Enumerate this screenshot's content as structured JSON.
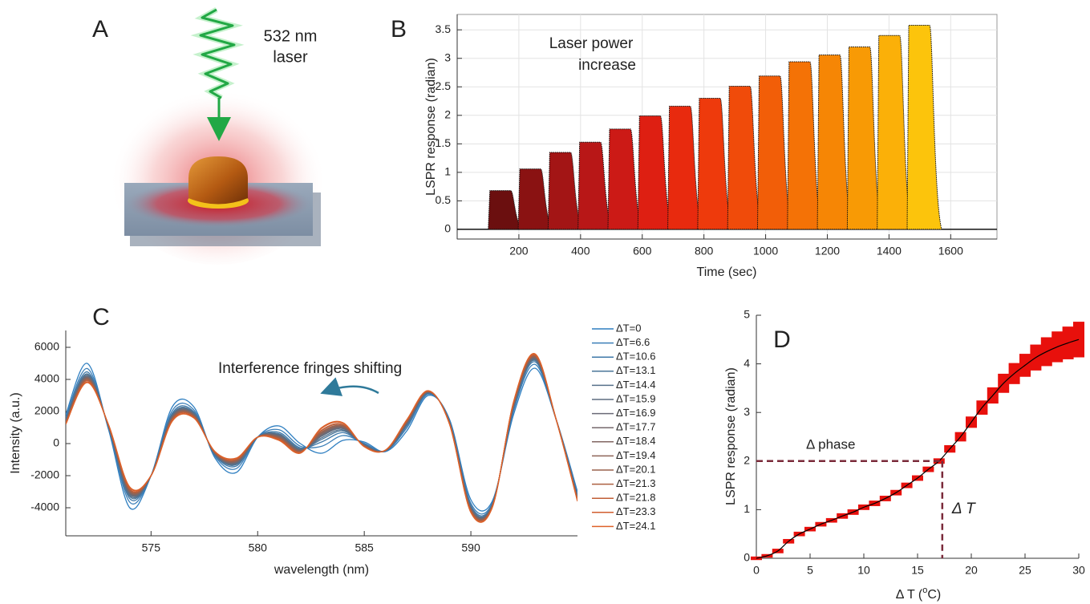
{
  "panel_a": {
    "panel": "A",
    "laser_label": [
      "532 nm",
      "laser"
    ]
  },
  "chart_data": [
    {
      "type": "bar",
      "panel": "B",
      "xlabel": "Time (sec)",
      "ylabel": "LSPR response (radian)",
      "annotation": [
        "Laser power",
        "increase"
      ],
      "x": [
        145,
        242,
        339,
        436,
        533,
        630,
        727,
        824,
        921,
        1018,
        1115,
        1212,
        1309,
        1406,
        1503
      ],
      "values": [
        0.68,
        1.06,
        1.35,
        1.53,
        1.76,
        1.99,
        2.16,
        2.3,
        2.51,
        2.69,
        2.94,
        3.06,
        3.2,
        3.4,
        3.58
      ],
      "colors": [
        "#6b0f0f",
        "#8a1212",
        "#a31515",
        "#b81717",
        "#cc1a16",
        "#de1f12",
        "#e82a0e",
        "#ee3a0c",
        "#f04b0a",
        "#f25e08",
        "#f47206",
        "#f68605",
        "#f89a05",
        "#fbb008",
        "#fcc40c"
      ],
      "xlim": [
        0,
        1750
      ],
      "xticks": [
        200,
        400,
        600,
        800,
        1000,
        1200,
        1400,
        1600
      ],
      "ylim": [
        -0.17,
        3.77
      ],
      "yticks": [
        0,
        0.5,
        1,
        1.5,
        2,
        2.5,
        3,
        3.5
      ],
      "grid": true
    },
    {
      "type": "line",
      "panel": "C",
      "xlabel": "wavelength (nm)",
      "ylabel": "Intensity  (a.u.)",
      "annotation": "Interference fringes shifting",
      "x": [
        571,
        572,
        573,
        574,
        575,
        576,
        577,
        578,
        579,
        580,
        581,
        582,
        583,
        584,
        585,
        586,
        587,
        588,
        589,
        590,
        591,
        592,
        593,
        594,
        595
      ],
      "series": [
        {
          "name": "ΔT=0",
          "color": "#2f7fc1",
          "values": [
            1800,
            5000,
            900,
            -4000,
            -2000,
            2300,
            2300,
            -900,
            -1800,
            400,
            1100,
            0,
            -600,
            200,
            100,
            -500,
            800,
            3000,
            1500,
            -3500,
            -3600,
            1800,
            4700,
            1500,
            -3000
          ]
        },
        {
          "name": "ΔT=6.6",
          "color": "#3c7fb8",
          "values": [
            1640,
            4680,
            980,
            -3650,
            -2000,
            2060,
            2110,
            -790,
            -1560,
            400,
            860,
            -160,
            -170,
            500,
            20,
            -470,
            990,
            3080,
            1420,
            -3720,
            -3710,
            2020,
            4940,
            1500,
            -3160
          ]
        },
        {
          "name": "ΔT=10.6",
          "color": "#3f78a8",
          "values": [
            1540,
            4470,
            1030,
            -3430,
            -2000,
            1900,
            1990,
            -720,
            -1400,
            400,
            700,
            -264,
            100,
            680,
            -30,
            -460,
            1110,
            3130,
            1370,
            -3850,
            -3780,
            2150,
            5100,
            1500,
            -3260
          ]
        },
        {
          "name": "ΔT=13.1",
          "color": "#4a7598",
          "values": [
            1480,
            4350,
            1060,
            -3300,
            -2000,
            1810,
            1920,
            -680,
            -1310,
            400,
            610,
            -324,
            260,
            790,
            -60,
            -450,
            1180,
            3160,
            1340,
            -3930,
            -3820,
            2230,
            5190,
            1500,
            -3320
          ]
        },
        {
          "name": "ΔT=14.4",
          "color": "#56718b",
          "values": [
            1440,
            4280,
            1080,
            -3220,
            -2000,
            1760,
            1880,
            -660,
            -1260,
            400,
            560,
            -360,
            360,
            860,
            -80,
            -440,
            1220,
            3180,
            1320,
            -3980,
            -3840,
            2280,
            5240,
            1500,
            -3360
          ]
        },
        {
          "name": "ΔT=15.9",
          "color": "#5f6d80",
          "values": [
            1400,
            4210,
            1100,
            -3140,
            -2000,
            1710,
            1840,
            -640,
            -1210,
            400,
            510,
            -396,
            460,
            930,
            -100,
            -430,
            1260,
            3200,
            1300,
            -4030,
            -3860,
            2330,
            5290,
            1500,
            -3400
          ]
        },
        {
          "name": "ΔT=16.9",
          "color": "#6a6a76",
          "values": [
            1380,
            4160,
            1110,
            -3090,
            -2000,
            1670,
            1810,
            -620,
            -1170,
            400,
            470,
            -420,
            520,
            970,
            -110,
            -430,
            1290,
            3210,
            1290,
            -4060,
            -3880,
            2360,
            5330,
            1500,
            -3420
          ]
        },
        {
          "name": "ΔT=17.7",
          "color": "#76686c",
          "values": [
            1360,
            4120,
            1120,
            -3050,
            -2000,
            1640,
            1790,
            -610,
            -1140,
            400,
            440,
            -438,
            570,
            1000,
            -120,
            -430,
            1310,
            3220,
            1280,
            -4080,
            -3890,
            2380,
            5360,
            1500,
            -3440
          ]
        },
        {
          "name": "ΔT=18.4",
          "color": "#826662",
          "values": [
            1340,
            4090,
            1130,
            -3010,
            -2000,
            1620,
            1770,
            -600,
            -1120,
            400,
            420,
            -456,
            620,
            1040,
            -130,
            -420,
            1330,
            3230,
            1270,
            -4110,
            -3900,
            2410,
            5380,
            1500,
            -3460
          ]
        },
        {
          "name": "ΔT=19.4",
          "color": "#8e6458",
          "values": [
            1320,
            4040,
            1140,
            -2960,
            -2000,
            1580,
            1740,
            -580,
            -1080,
            400,
            380,
            -480,
            680,
            1080,
            -140,
            -420,
            1360,
            3240,
            1260,
            -4140,
            -3920,
            2440,
            5420,
            1500,
            -3480
          ]
        },
        {
          "name": "ΔT=20.1",
          "color": "#9a624e",
          "values": [
            1300,
            4000,
            1150,
            -2920,
            -2000,
            1550,
            1720,
            -570,
            -1050,
            400,
            350,
            -498,
            730,
            1110,
            -150,
            -420,
            1380,
            3250,
            1250,
            -4160,
            -3930,
            2460,
            5450,
            1500,
            -3500
          ]
        },
        {
          "name": "ΔT=21.3",
          "color": "#ad5f40",
          "values": [
            1270,
            3940,
            1160,
            -2860,
            -2000,
            1510,
            1680,
            -550,
            -1010,
            400,
            310,
            -528,
            810,
            1170,
            -160,
            -410,
            1420,
            3260,
            1240,
            -4200,
            -3950,
            2500,
            5490,
            1500,
            -3530
          ]
        },
        {
          "name": "ΔT=21.8",
          "color": "#c15e36",
          "values": [
            1260,
            3920,
            1170,
            -2830,
            -2000,
            1490,
            1670,
            -540,
            -990,
            400,
            290,
            -540,
            840,
            1190,
            -170,
            -410,
            1430,
            3270,
            1230,
            -4220,
            -3960,
            2520,
            5510,
            1500,
            -3540
          ]
        },
        {
          "name": "ΔT=23.3",
          "color": "#d15e2f",
          "values": [
            1220,
            3840,
            1190,
            -2740,
            -2000,
            1430,
            1620,
            -510,
            -930,
            400,
            230,
            -582,
            950,
            1270,
            -190,
            -400,
            1480,
            3290,
            1210,
            -4280,
            -3990,
            2580,
            5570,
            1500,
            -3580
          ]
        },
        {
          "name": "ΔT=24.1",
          "color": "#de6229",
          "values": [
            1200,
            3800,
            1200,
            -2700,
            -2000,
            1400,
            1600,
            -500,
            -900,
            400,
            200,
            -600,
            1000,
            1300,
            -200,
            -400,
            1500,
            3300,
            1200,
            -4300,
            -4000,
            2600,
            5600,
            1500,
            -3600
          ]
        }
      ],
      "xlim": [
        571,
        595
      ],
      "xticks": [
        575,
        580,
        585,
        590
      ],
      "ylim": [
        -5750,
        7050
      ],
      "yticks": [
        -4000,
        -2000,
        0,
        2000,
        4000,
        6000
      ],
      "grid": false
    },
    {
      "type": "line",
      "panel": "D",
      "xlabel": [
        "Δ T (",
        "o",
        "C)"
      ],
      "ylabel": "LSPR response (radian)",
      "annotations": [
        "Δ phase",
        "Δ T"
      ],
      "guide": {
        "x": 17.3,
        "y": 2
      },
      "x": [
        0,
        1,
        2,
        3,
        4,
        5,
        6,
        7,
        8,
        9,
        10,
        11,
        12,
        13,
        14,
        15,
        16,
        17,
        18,
        19,
        20,
        21,
        22,
        23,
        24,
        25,
        26,
        27,
        28,
        29,
        30
      ],
      "series": [
        {
          "color": "#000000",
          "band_color": "#e8100c",
          "values": [
            0,
            0.05,
            0.15,
            0.35,
            0.5,
            0.6,
            0.7,
            0.78,
            0.87,
            0.95,
            1.05,
            1.13,
            1.23,
            1.35,
            1.5,
            1.65,
            1.83,
            2.0,
            2.25,
            2.5,
            2.8,
            3.1,
            3.35,
            3.6,
            3.8,
            3.97,
            4.13,
            4.25,
            4.35,
            4.43,
            4.5
          ],
          "errors": [
            0.02,
            0.02,
            0.03,
            0.03,
            0.03,
            0.03,
            0.03,
            0.03,
            0.04,
            0.04,
            0.04,
            0.04,
            0.04,
            0.04,
            0.04,
            0.04,
            0.04,
            0.04,
            0.06,
            0.08,
            0.1,
            0.13,
            0.15,
            0.18,
            0.2,
            0.22,
            0.25,
            0.28,
            0.3,
            0.32,
            0.35
          ]
        }
      ],
      "xlim": [
        0,
        30
      ],
      "xticks": [
        0,
        5,
        10,
        15,
        20,
        25,
        30
      ],
      "ylim": [
        0,
        5
      ],
      "yticks": [
        0,
        1,
        2,
        3,
        4,
        5
      ],
      "grid": false
    }
  ]
}
